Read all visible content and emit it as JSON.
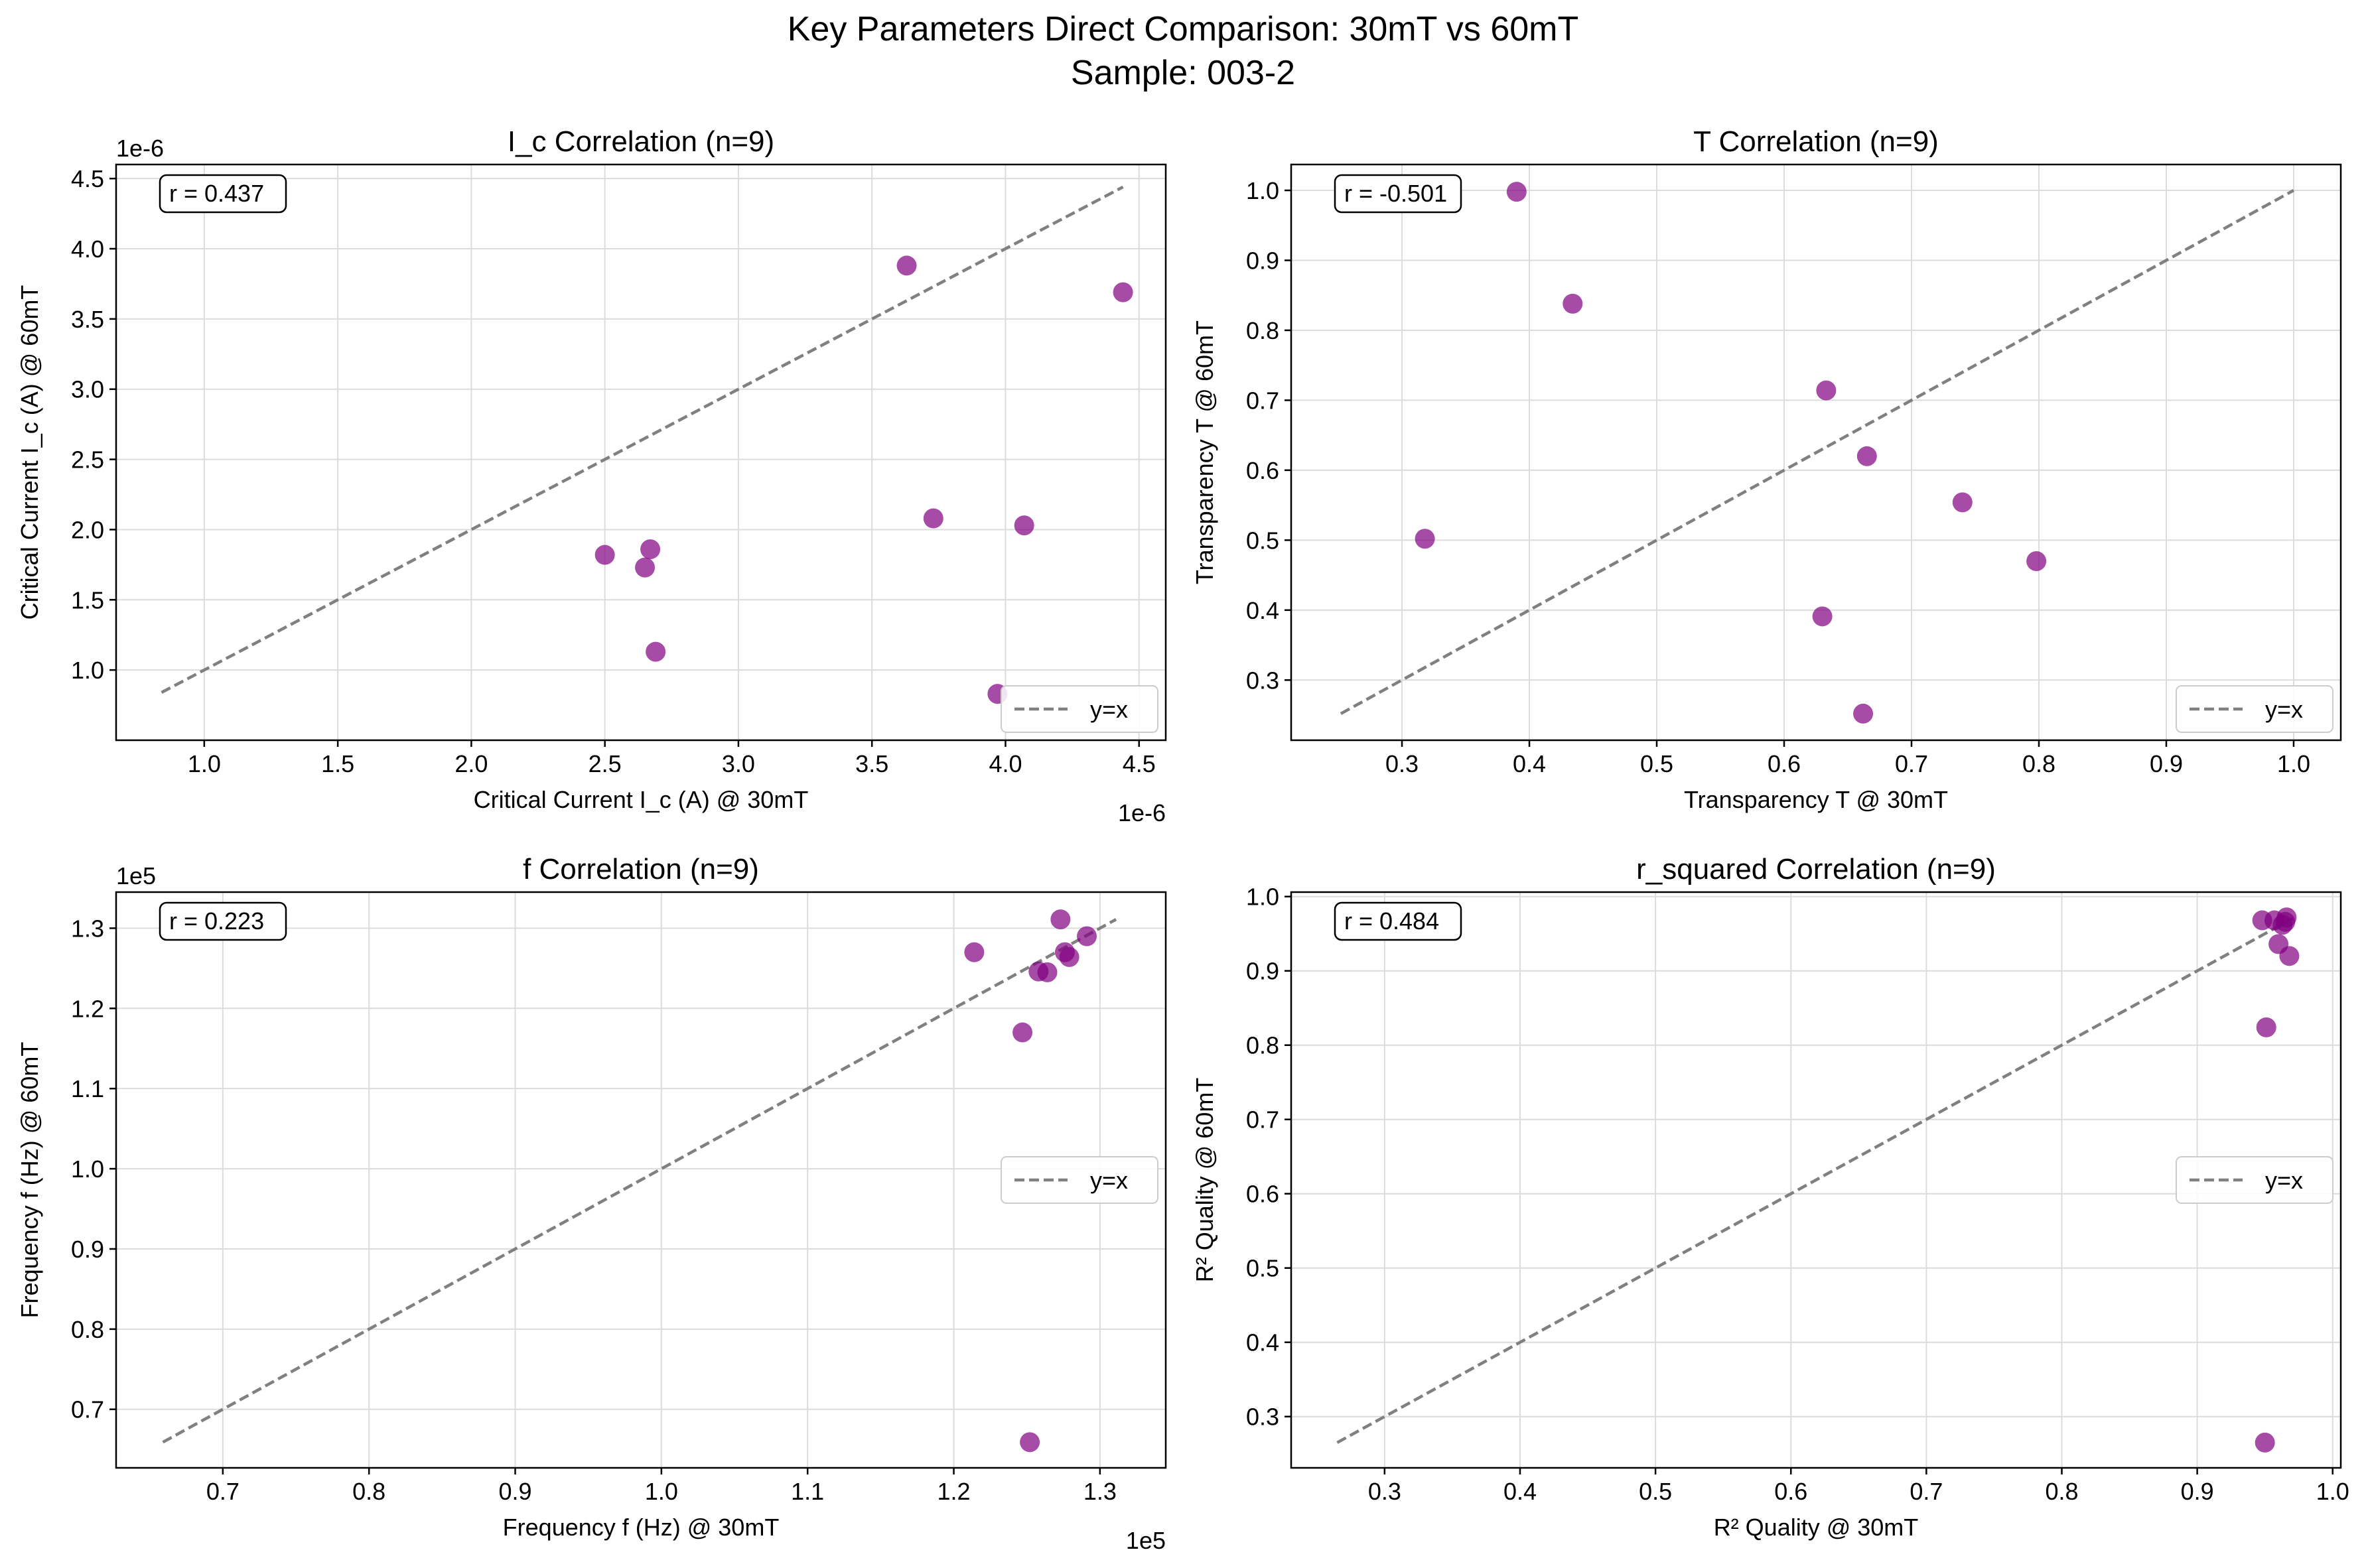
{
  "figure": {
    "suptitle_line1": "Key Parameters Direct Comparison: 30mT vs 60mT",
    "suptitle_line2": "Sample: 003-2",
    "marker_color": "#800080",
    "diag_color": "#808080"
  },
  "chart_data": [
    {
      "type": "scatter",
      "title": "I_c Correlation (n=9)",
      "xlabel": "Critical Current I_c (A) @ 30mT",
      "ylabel": "Critical Current I_c (A) @ 60mT",
      "x_offset_label": "1e-6",
      "y_offset_label": "1e-6",
      "xlim": [
        0.67,
        4.6
      ],
      "ylim": [
        0.5,
        4.6
      ],
      "xticks": [
        1.0,
        1.5,
        2.0,
        2.5,
        3.0,
        3.5,
        4.0,
        4.5
      ],
      "xtick_labels": [
        "1.0",
        "1.5",
        "2.0",
        "2.5",
        "3.0",
        "3.5",
        "4.0",
        "4.5"
      ],
      "yticks": [
        1.0,
        1.5,
        2.0,
        2.5,
        3.0,
        3.5,
        4.0,
        4.5
      ],
      "ytick_labels": [
        "1.0",
        "1.5",
        "2.0",
        "2.5",
        "3.0",
        "3.5",
        "4.0",
        "4.5"
      ],
      "x": [
        2.5,
        2.65,
        2.67,
        2.69,
        3.63,
        3.73,
        3.97,
        4.07,
        4.44
      ],
      "y": [
        1.82,
        1.73,
        1.86,
        1.13,
        3.88,
        2.08,
        0.83,
        2.03,
        3.69
      ],
      "diag": [
        0.84,
        4.44
      ],
      "corr_label": "r = 0.437",
      "legend": "y=x",
      "legend_loc": "lower right",
      "grid": true
    },
    {
      "type": "scatter",
      "title": "T Correlation (n=9)",
      "xlabel": "Transparency T @ 30mT",
      "ylabel": "Transparency T @ 60mT",
      "xlim": [
        0.213,
        1.037
      ],
      "ylim": [
        0.214,
        1.037
      ],
      "xticks": [
        0.3,
        0.4,
        0.5,
        0.6,
        0.7,
        0.8,
        0.9,
        1.0
      ],
      "xtick_labels": [
        "0.3",
        "0.4",
        "0.5",
        "0.6",
        "0.7",
        "0.8",
        "0.9",
        "1.0"
      ],
      "yticks": [
        0.3,
        0.4,
        0.5,
        0.6,
        0.7,
        0.8,
        0.9,
        1.0
      ],
      "ytick_labels": [
        "0.3",
        "0.4",
        "0.5",
        "0.6",
        "0.7",
        "0.8",
        "0.9",
        "1.0"
      ],
      "x": [
        0.318,
        0.39,
        0.434,
        0.63,
        0.633,
        0.662,
        0.665,
        0.74,
        0.798
      ],
      "y": [
        0.502,
        0.998,
        0.838,
        0.391,
        0.714,
        0.252,
        0.62,
        0.554,
        0.47
      ],
      "diag": [
        0.252,
        1.0
      ],
      "corr_label": "r = -0.501",
      "legend": "y=x",
      "legend_loc": "lower right",
      "grid": true
    },
    {
      "type": "scatter",
      "title": "f Correlation (n=9)",
      "xlabel": "Frequency f (Hz) @ 30mT",
      "ylabel": "Frequency f (Hz) @ 60mT",
      "x_offset_label": "1e5",
      "y_offset_label": "1e5",
      "xlim": [
        0.627,
        1.345
      ],
      "ylim": [
        0.627,
        1.345
      ],
      "xticks": [
        0.7,
        0.8,
        0.9,
        1.0,
        1.1,
        1.2,
        1.3
      ],
      "xtick_labels": [
        "0.7",
        "0.8",
        "0.9",
        "1.0",
        "1.1",
        "1.2",
        "1.3"
      ],
      "yticks": [
        0.7,
        0.8,
        0.9,
        1.0,
        1.1,
        1.2,
        1.3
      ],
      "ytick_labels": [
        "0.7",
        "0.8",
        "0.9",
        "1.0",
        "1.1",
        "1.2",
        "1.3"
      ],
      "x": [
        1.214,
        1.247,
        1.252,
        1.258,
        1.264,
        1.273,
        1.276,
        1.279,
        1.291
      ],
      "y": [
        1.27,
        1.17,
        0.659,
        1.246,
        1.245,
        1.311,
        1.27,
        1.264,
        1.29
      ],
      "diag": [
        0.659,
        1.311
      ],
      "corr_label": "r = 0.223",
      "legend": "y=x",
      "legend_loc": "center right",
      "grid": true
    },
    {
      "type": "scatter",
      "title": "r_squared Correlation (n=9)",
      "xlabel": "R² Quality @ 30mT",
      "ylabel": "R² Quality @ 60mT",
      "xlim": [
        0.231,
        1.006
      ],
      "ylim": [
        0.231,
        1.006
      ],
      "xticks": [
        0.3,
        0.4,
        0.5,
        0.6,
        0.7,
        0.8,
        0.9,
        1.0
      ],
      "xtick_labels": [
        "0.3",
        "0.4",
        "0.5",
        "0.6",
        "0.7",
        "0.8",
        "0.9",
        "1.0"
      ],
      "yticks": [
        0.3,
        0.4,
        0.5,
        0.6,
        0.7,
        0.8,
        0.9,
        1.0
      ],
      "ytick_labels": [
        "0.3",
        "0.4",
        "0.5",
        "0.6",
        "0.7",
        "0.8",
        "0.9",
        "1.0"
      ],
      "x": [
        0.948,
        0.95,
        0.951,
        0.957,
        0.96,
        0.963,
        0.965,
        0.966,
        0.968
      ],
      "y": [
        0.968,
        0.265,
        0.824,
        0.968,
        0.936,
        0.962,
        0.966,
        0.972,
        0.92
      ],
      "diag": [
        0.265,
        0.972
      ],
      "corr_label": "r = 0.484",
      "legend": "y=x",
      "legend_loc": "center right",
      "grid": true
    }
  ]
}
